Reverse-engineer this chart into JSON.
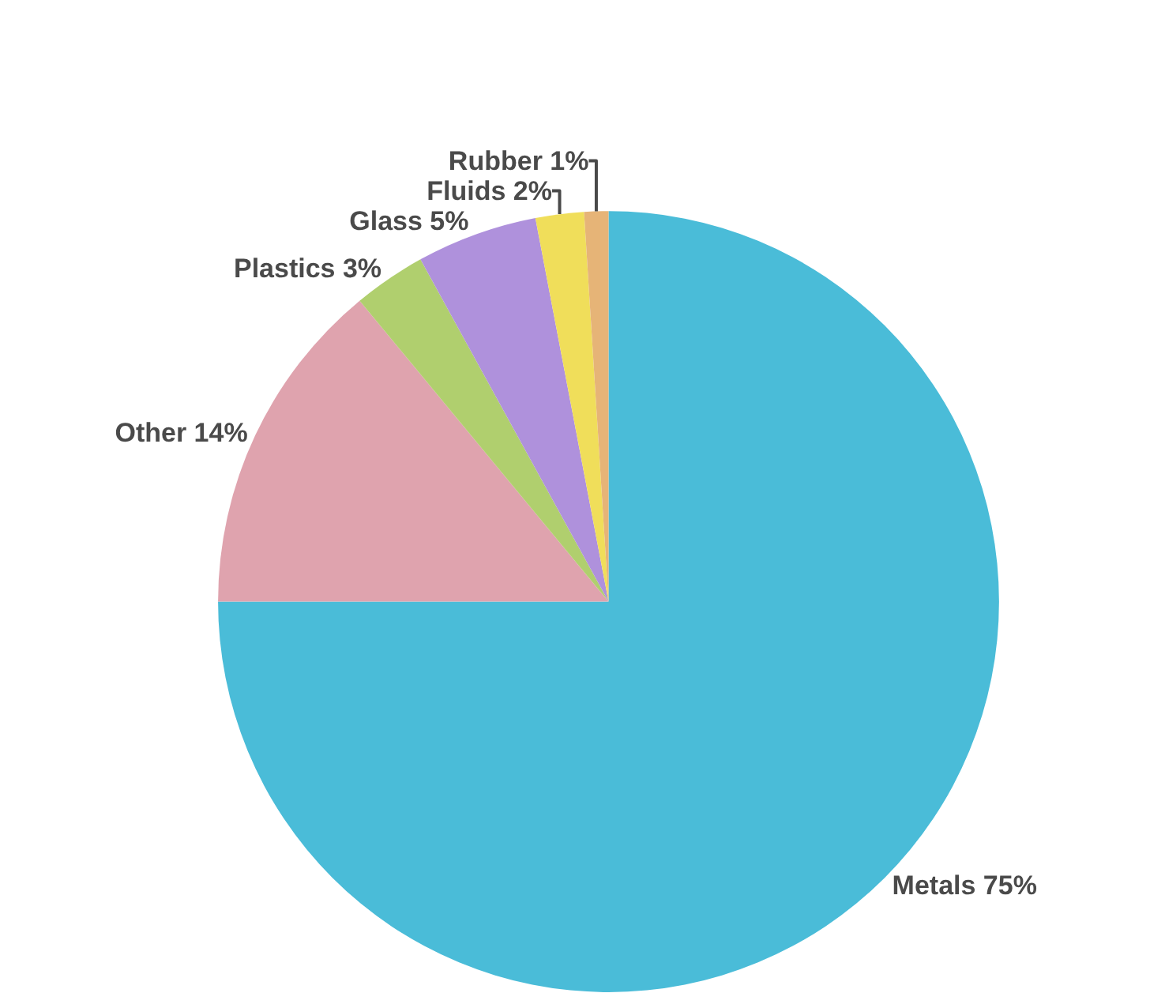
{
  "chart_data": {
    "type": "pie",
    "categories": [
      "Metals",
      "Other",
      "Plastics",
      "Glass",
      "Fluids",
      "Rubber"
    ],
    "values": [
      75,
      14,
      3,
      5,
      2,
      1
    ],
    "value_labels": [
      "75%",
      "14%",
      "3%",
      "5%",
      "2%",
      "1%"
    ],
    "colors": [
      "#4abcd8",
      "#dfa3ae",
      "#b0cf6e",
      "#af91dc",
      "#f0de5a",
      "#e6b477"
    ],
    "legend": false
  }
}
